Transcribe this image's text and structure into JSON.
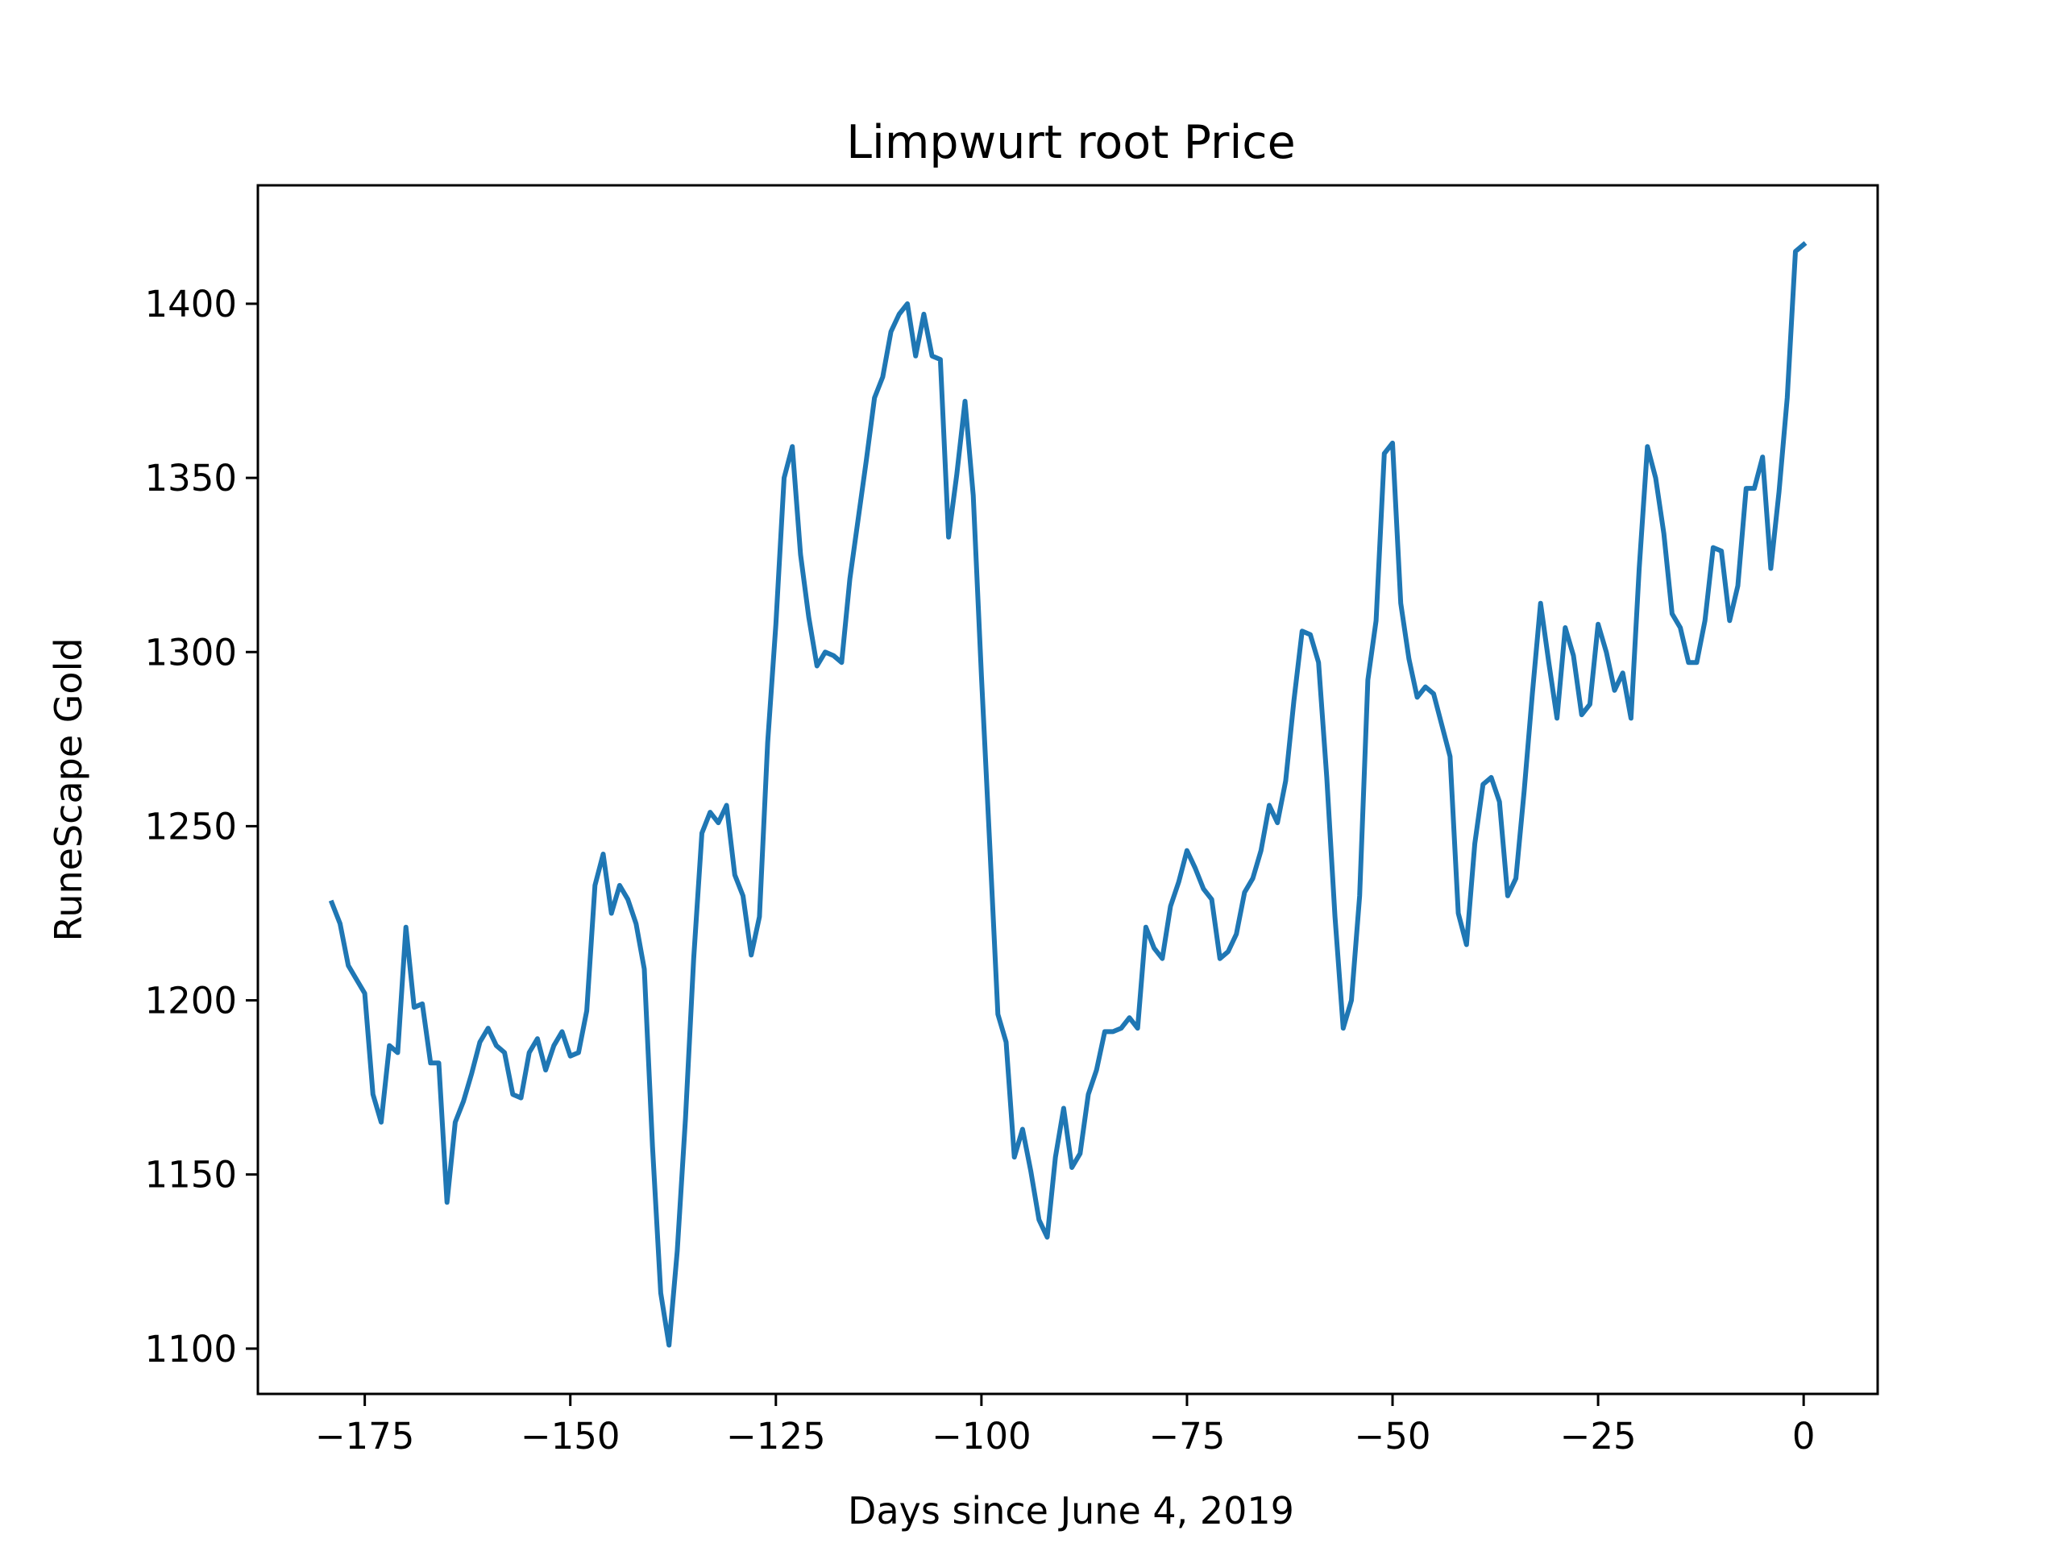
{
  "chart_data": {
    "type": "line",
    "title": "Limpwurt root Price",
    "xlabel": "Days since June 4, 2019",
    "ylabel": "RuneScape Gold",
    "xlim": [
      -188,
      9
    ],
    "ylim": [
      1087,
      1434
    ],
    "xticks": [
      -175,
      -150,
      -125,
      -100,
      -75,
      -50,
      -25,
      0
    ],
    "xtick_labels": [
      "−175",
      "−150",
      "−125",
      "−100",
      "−75",
      "−50",
      "−25",
      "0"
    ],
    "yticks": [
      1100,
      1150,
      1200,
      1250,
      1300,
      1350,
      1400
    ],
    "ytick_labels": [
      "1100",
      "1150",
      "1200",
      "1250",
      "1300",
      "1350",
      "1400"
    ],
    "grid": false,
    "legend": false,
    "line_color": "#1f77b4",
    "series": [
      {
        "x": [
          -179,
          -178,
          -177,
          -176,
          -175,
          -174,
          -173,
          -172,
          -171,
          -170,
          -169,
          -168,
          -167,
          -166,
          -165,
          -164,
          -163,
          -162,
          -161,
          -160,
          -159,
          -158,
          -157,
          -156,
          -155,
          -154,
          -153,
          -152,
          -151,
          -150,
          -149,
          -148,
          -147,
          -146,
          -145,
          -144,
          -143,
          -142,
          -141,
          -140,
          -139,
          -138,
          -137,
          -136,
          -135,
          -134,
          -133,
          -132,
          -131,
          -130,
          -129,
          -128,
          -127,
          -126,
          -125,
          -124,
          -123,
          -122,
          -121,
          -120,
          -119,
          -118,
          -117,
          -116,
          -115,
          -114,
          -113,
          -112,
          -111,
          -110,
          -109,
          -108,
          -107,
          -106,
          -105,
          -104,
          -103,
          -102,
          -101,
          -100,
          -99,
          -98,
          -97,
          -96,
          -95,
          -94,
          -93,
          -92,
          -91,
          -90,
          -89,
          -88,
          -87,
          -86,
          -85,
          -84,
          -83,
          -82,
          -81,
          -80,
          -79,
          -78,
          -77,
          -76,
          -75,
          -74,
          -73,
          -72,
          -71,
          -70,
          -69,
          -68,
          -67,
          -66,
          -65,
          -64,
          -63,
          -62,
          -61,
          -60,
          -59,
          -58,
          -57,
          -56,
          -55,
          -54,
          -53,
          -52,
          -51,
          -50,
          -49,
          -48,
          -47,
          -46,
          -45,
          -44,
          -43,
          -42,
          -41,
          -40,
          -39,
          -38,
          -37,
          -36,
          -35,
          -34,
          -33,
          -32,
          -31,
          -30,
          -29,
          -28,
          -27,
          -26,
          -25,
          -24,
          -23,
          -22,
          -21,
          -20,
          -19,
          -18,
          -17,
          -16,
          -15,
          -14,
          -13,
          -12,
          -11,
          -10,
          -9,
          -8,
          -7,
          -6,
          -5,
          -4,
          -3,
          -2,
          -1,
          0
        ],
        "y": [
          1228,
          1222,
          1210,
          1206,
          1202,
          1173,
          1165,
          1187,
          1185,
          1221,
          1198,
          1199,
          1182,
          1182,
          1142,
          1165,
          1171,
          1179,
          1188,
          1192,
          1187,
          1185,
          1173,
          1172,
          1185,
          1189,
          1180,
          1187,
          1191,
          1184,
          1185,
          1197,
          1233,
          1242,
          1225,
          1233,
          1229,
          1222,
          1209,
          1158,
          1116,
          1101,
          1128,
          1166,
          1212,
          1248,
          1254,
          1251,
          1256,
          1236,
          1230,
          1213,
          1224,
          1274,
          1308,
          1350,
          1359,
          1328,
          1310,
          1296,
          1300,
          1299,
          1297,
          1321,
          1338,
          1355,
          1373,
          1379,
          1392,
          1397,
          1400,
          1385,
          1397,
          1385,
          1384,
          1333,
          1351,
          1372,
          1345,
          1293,
          1245,
          1196,
          1188,
          1155,
          1163,
          1151,
          1137,
          1132,
          1155,
          1169,
          1152,
          1156,
          1173,
          1180,
          1191,
          1191,
          1192,
          1195,
          1192,
          1221,
          1215,
          1212,
          1227,
          1234,
          1243,
          1238,
          1232,
          1229,
          1212,
          1214,
          1219,
          1231,
          1235,
          1243,
          1256,
          1251,
          1263,
          1286,
          1306,
          1305,
          1297,
          1264,
          1224,
          1192,
          1200,
          1230,
          1292,
          1309,
          1357,
          1360,
          1314,
          1298,
          1287,
          1290,
          1288,
          1279,
          1270,
          1225,
          1216,
          1245,
          1262,
          1264,
          1257,
          1230,
          1235,
          1260,
          1288,
          1314,
          1297,
          1281,
          1307,
          1299,
          1282,
          1285,
          1308,
          1300,
          1289,
          1294,
          1281,
          1324,
          1359,
          1350,
          1334,
          1311,
          1307,
          1297,
          1297,
          1309,
          1330,
          1329,
          1309,
          1319,
          1347,
          1347,
          1356,
          1324,
          1346,
          1373,
          1415,
          1417
        ]
      }
    ]
  }
}
